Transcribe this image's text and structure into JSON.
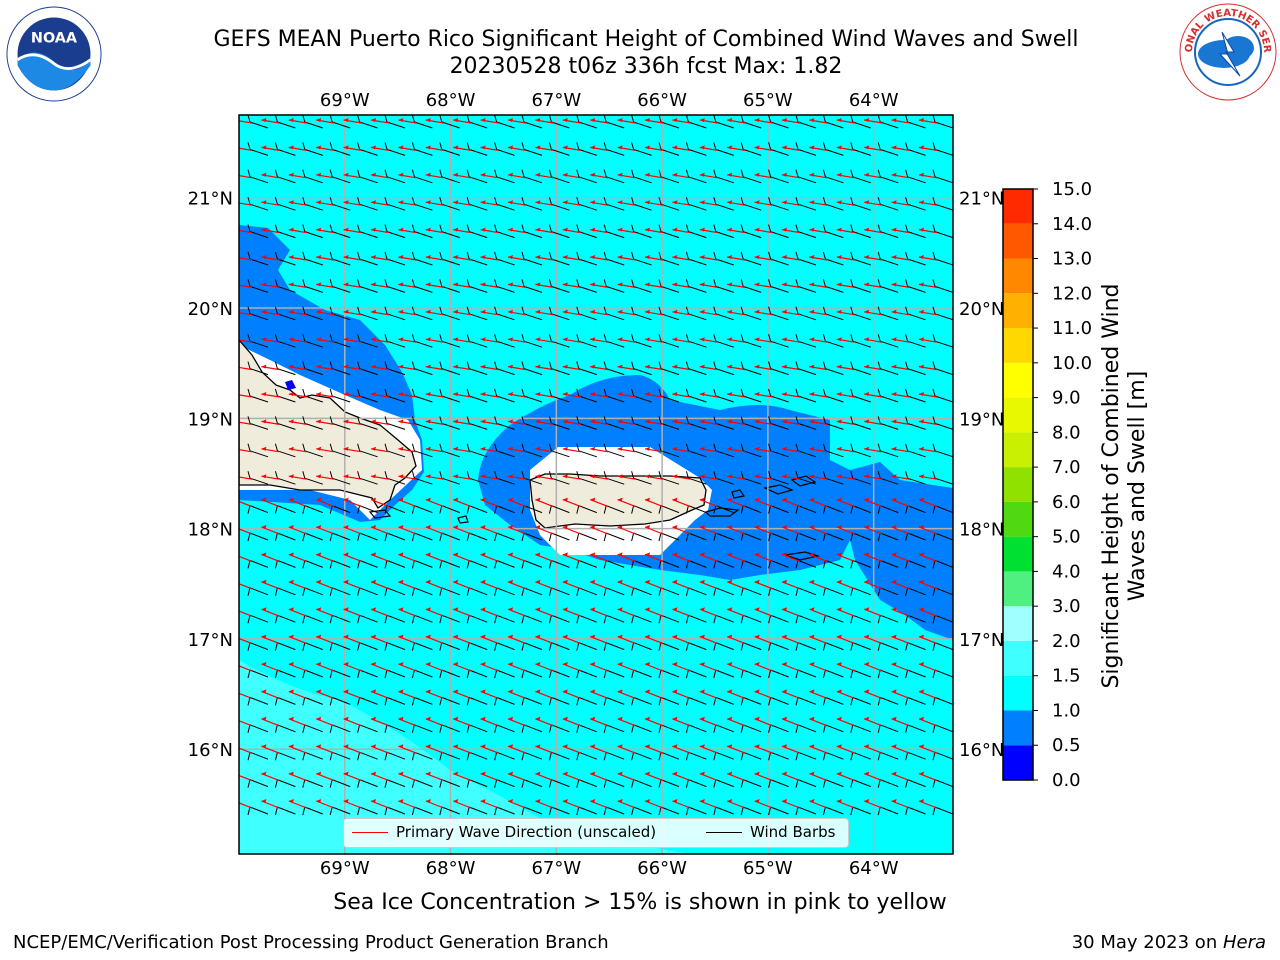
{
  "header": {
    "title_line1": "GEFS MEAN Puerto Rico Significant Height of Combined Wind Waves and Swell",
    "title_line2": "20230528 t06z 336h fcst   Max: 1.82"
  },
  "logos": {
    "left": {
      "icon": "noaa-logo",
      "text": "NOAA",
      "ring_text": "NATIONAL OCEANIC AND ATMOSPHERIC ADMINISTRATION • U.S. DEPARTMENT OF COMMERCE"
    },
    "right": {
      "icon": "nws-logo",
      "ring_text": "NATIONAL WEATHER SERVICE"
    }
  },
  "map": {
    "lon_range": [
      -70,
      -63.25
    ],
    "lat_range": [
      15.05,
      21.75
    ],
    "lon_ticks": [
      "69°W",
      "68°W",
      "67°W",
      "66°W",
      "65°W",
      "64°W"
    ],
    "lon_values": [
      -69,
      -68,
      -67,
      -66,
      -65,
      -64
    ],
    "lat_ticks": [
      "21°N",
      "20°N",
      "19°N",
      "18°N",
      "17°N",
      "16°N"
    ],
    "lat_values": [
      21,
      20,
      19,
      18,
      17,
      16
    ],
    "grid": true,
    "ocean_color": "#00ffff",
    "land_color": "#efecdc",
    "region_colors": {
      "0.5-1.0": "#0080ff",
      "1.5-2.0": "#40ffff",
      "0.0-0.5": "#0000ff"
    }
  },
  "legend": {
    "placement": "lower-center",
    "items": [
      {
        "label": "Primary Wave Direction (unscaled)",
        "color": "#ff0000"
      },
      {
        "label": "Wind Barbs",
        "color": "#000000"
      }
    ]
  },
  "colorbar": {
    "label": "Significant Height of Combined Wind Waves and Swell [m]",
    "tick_labels": [
      "0.0",
      "0.5",
      "1.0",
      "1.5",
      "2.0",
      "3.0",
      "4.0",
      "5.0",
      "6.0",
      "7.0",
      "8.0",
      "9.0",
      "10.0",
      "11.0",
      "12.0",
      "13.0",
      "14.0",
      "15.0"
    ],
    "colors": [
      "#0000ff",
      "#0080ff",
      "#00ffff",
      "#40ffff",
      "#a0ffff",
      "#50f080",
      "#00e030",
      "#50d810",
      "#90e000",
      "#c8f000",
      "#e8f800",
      "#ffff00",
      "#ffd800",
      "#ffb000",
      "#ff8800",
      "#ff5800",
      "#ff2a00",
      "#ff0000"
    ]
  },
  "subtitle": "Sea Ice Concentration > 15% is shown in pink to yellow",
  "footer": {
    "left": "NCEP/EMC/Verification Post Processing Product Generation Branch",
    "right_prefix": "30 May 2023 on ",
    "right_host": "Hera"
  }
}
